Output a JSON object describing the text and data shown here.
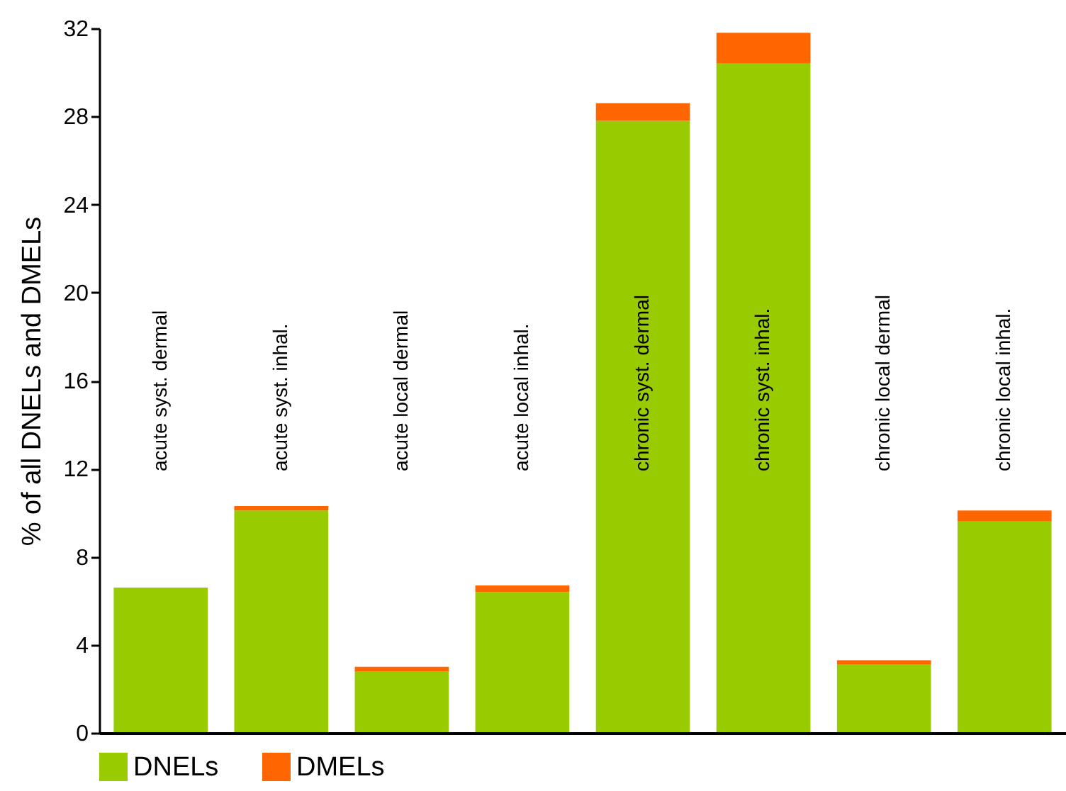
{
  "chart_data": {
    "type": "bar",
    "stacked": true,
    "ylabel": "% of all DNELs and DMELs",
    "categories": [
      "acute syst. dermal",
      "acute syst. inhal.",
      "acute local dermal",
      "acute local inhal.",
      "chronic syst. dermal",
      "chronic syst. inhal.",
      "chronic local dermal",
      "chronic local inhal."
    ],
    "series": [
      {
        "name": "DNELs",
        "color": "#99cc00",
        "values": [
          6.6,
          10.1,
          2.8,
          6.4,
          27.8,
          30.4,
          3.1,
          9.6
        ]
      },
      {
        "name": "DMELs",
        "color": "#ff6600",
        "values": [
          0,
          0.2,
          0.2,
          0.3,
          0.8,
          1.4,
          0.2,
          0.5
        ]
      }
    ],
    "ylim": [
      0,
      32
    ],
    "yticks": [
      0,
      4,
      8,
      12,
      16,
      20,
      24,
      28,
      32
    ],
    "legend": "bottom"
  }
}
